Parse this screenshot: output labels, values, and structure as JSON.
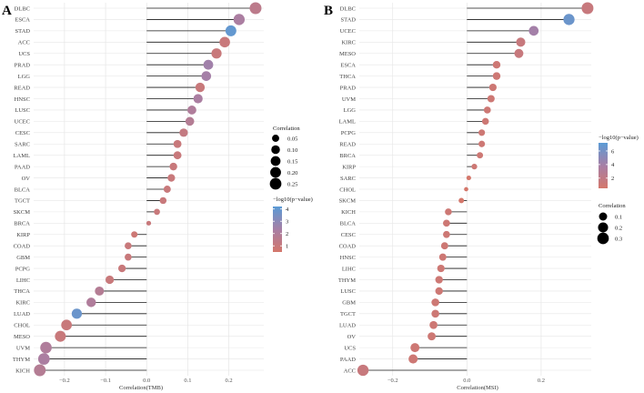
{
  "colors": {
    "low": "#d4776b",
    "mid": "#a77fa6",
    "high": "#5b9bd5",
    "line": "#1a1a1a",
    "grid": "#e6e6e6"
  },
  "chart_data": [
    {
      "panel_label": "A",
      "type": "lollipop",
      "xlabel": "Correlation(TMB)",
      "xlim": [
        -0.275,
        0.285
      ],
      "xticks": [
        -0.2,
        -0.1,
        0.0,
        0.1,
        0.2
      ],
      "xtick_labels": [
        "−0.2",
        "−0.1",
        "0.0",
        "0.1",
        "0.2"
      ],
      "categories": [
        "DLBC",
        "ESCA",
        "STAD",
        "ACC",
        "UCS",
        "PRAD",
        "LGG",
        "READ",
        "HNSC",
        "LUSC",
        "UCEC",
        "CESC",
        "SARC",
        "LAML",
        "PAAD",
        "OV",
        "BLCA",
        "TGCT",
        "SKCM",
        "BRCA",
        "KIRP",
        "COAD",
        "GBM",
        "PCPG",
        "LIHC",
        "THCA",
        "KIRC",
        "LUAD",
        "CHOL",
        "MESO",
        "UVM",
        "THYM",
        "KICH"
      ],
      "values": [
        0.265,
        0.225,
        0.205,
        0.19,
        0.17,
        0.15,
        0.145,
        0.13,
        0.125,
        0.11,
        0.105,
        0.09,
        0.075,
        0.075,
        0.065,
        0.06,
        0.05,
        0.04,
        0.025,
        0.005,
        -0.03,
        -0.045,
        -0.045,
        -0.06,
        -0.09,
        -0.115,
        -0.135,
        -0.17,
        -0.195,
        -0.21,
        -0.245,
        -0.25,
        -0.26
      ],
      "log10p": [
        1.5,
        2.2,
        4,
        1,
        1,
        2.5,
        2.4,
        1,
        2.2,
        2,
        1.8,
        1.2,
        1,
        1,
        1,
        1,
        1,
        1,
        1,
        1,
        0.8,
        1,
        1,
        1,
        1,
        1.8,
        2,
        3.8,
        1,
        1,
        2,
        2.2,
        1.8
      ],
      "size_legend": {
        "title": "Correlation",
        "labels": [
          "0.05",
          "0.10",
          "0.15",
          "0.20",
          "0.25"
        ],
        "values": [
          0.05,
          0.1,
          0.15,
          0.2,
          0.25
        ]
      },
      "color_legend": {
        "title": "−log10(p−value)",
        "labels": [
          "1",
          "2",
          "3",
          "4"
        ],
        "values": [
          1,
          2,
          3,
          4
        ],
        "min": 0.5,
        "max": 4.2
      }
    },
    {
      "panel_label": "B",
      "type": "lollipop",
      "xlabel": "Correlation(MSI)",
      "xlim": [
        -0.29,
        0.335
      ],
      "xticks": [
        -0.2,
        0.0,
        0.2
      ],
      "xtick_labels": [
        "−0.2",
        "0.0",
        "0.2"
      ],
      "categories": [
        "DLBC",
        "STAD",
        "UCEC",
        "KIRC",
        "MESO",
        "ESCA",
        "THCA",
        "PRAD",
        "UVM",
        "LGG",
        "LAML",
        "PCPG",
        "READ",
        "BRCA",
        "KIRP",
        "SARC",
        "CHOL",
        "SKCM",
        "KICH",
        "BLCA",
        "CESC",
        "COAD",
        "HNSC",
        "LIHC",
        "THYM",
        "LUSC",
        "GBM",
        "TGCT",
        "LUAD",
        "OV",
        "UCS",
        "PAAD",
        "ACC"
      ],
      "values": [
        0.325,
        0.275,
        0.18,
        0.145,
        0.14,
        0.08,
        0.08,
        0.07,
        0.065,
        0.055,
        0.05,
        0.04,
        0.04,
        0.035,
        0.02,
        0.005,
        -0.002,
        -0.015,
        -0.05,
        -0.055,
        -0.055,
        -0.06,
        -0.065,
        -0.07,
        -0.075,
        -0.075,
        -0.085,
        -0.085,
        -0.09,
        -0.095,
        -0.14,
        -0.145,
        -0.28
      ],
      "log10p": [
        1.5,
        6.5,
        4,
        1.5,
        1.5,
        1,
        1,
        1,
        1,
        1,
        1,
        1,
        1,
        1,
        1,
        0.5,
        0.5,
        0.5,
        1,
        1,
        1,
        1,
        1,
        1,
        1,
        1,
        1,
        1,
        1,
        1,
        1,
        1,
        1.5
      ],
      "size_legend": {
        "title": "Correlation",
        "labels": [
          "0.1",
          "0.2",
          "0.3"
        ],
        "values": [
          0.1,
          0.2,
          0.3
        ]
      },
      "color_legend": {
        "title": "−log10(p−value)",
        "labels": [
          "2",
          "4",
          "6"
        ],
        "values": [
          2,
          4,
          6
        ],
        "min": 0.5,
        "max": 7.2
      }
    }
  ]
}
